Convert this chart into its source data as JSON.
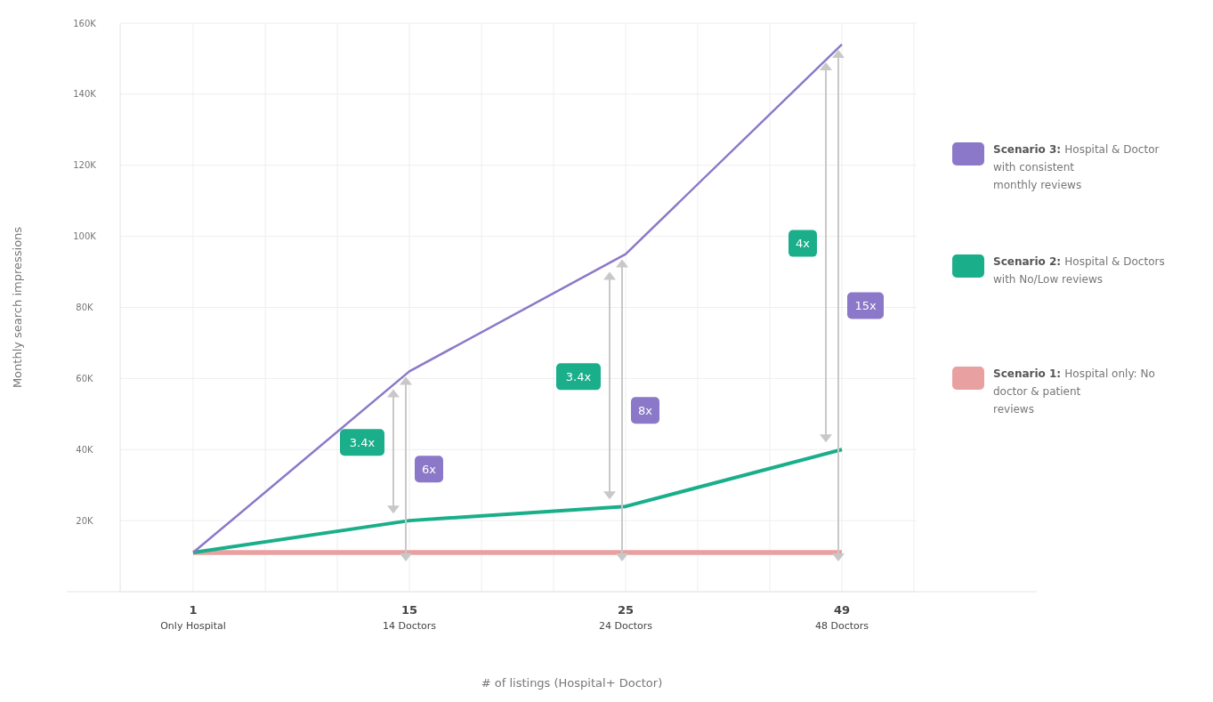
{
  "chart_data": {
    "type": "line",
    "xlabel": "# of listings (Hospital+ Doctor)",
    "ylabel": "Monthly search impressions",
    "categories": [
      "1\nOnly Hospital",
      "15\n14 Doctors",
      "25\n24 Doctors",
      "49\n48 Doctors"
    ],
    "ylim": [
      0,
      160000
    ],
    "yticks": [
      {
        "value": 0,
        "label": null
      },
      {
        "value": 20000,
        "label": "20K"
      },
      {
        "value": 40000,
        "label": "40K"
      },
      {
        "value": 60000,
        "label": "60K"
      },
      {
        "value": 80000,
        "label": "80K"
      },
      {
        "value": 100000,
        "label": "100K"
      },
      {
        "value": 120000,
        "label": "120K"
      },
      {
        "value": 140000,
        "label": "140K"
      },
      {
        "value": 160000,
        "label": "160K"
      }
    ],
    "grid": true,
    "legend": "right",
    "marker": "none",
    "line_style": "solid",
    "series": [
      {
        "name": "Scenario 3: Hospital & Doctor with consistent monthly reviews",
        "color": "#8b78c8",
        "values": [
          11000,
          62000,
          95000,
          154000
        ]
      },
      {
        "name": "Scenario 2: Hospital & Doctors with No/Low reviews",
        "color": "#1aae8a",
        "values": [
          11000,
          20000,
          24000,
          40000
        ]
      },
      {
        "name": "Scenario 1: Hospital only: No doctor & patient reviews",
        "color": "#e8a0a0",
        "values": [
          11000,
          11000,
          11000,
          11000
        ]
      }
    ],
    "annotations": [
      "3.4x",
      "6x",
      "3.4x",
      "8x",
      "4x",
      "15x"
    ]
  }
}
